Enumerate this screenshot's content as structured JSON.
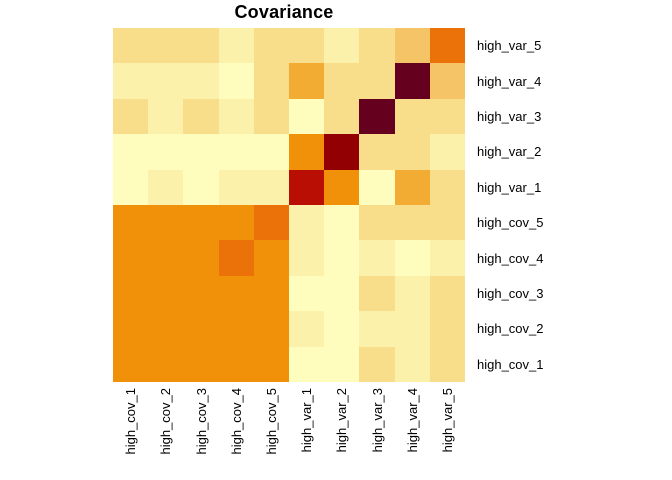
{
  "title": "Covariance",
  "chart_data": {
    "type": "heatmap",
    "title": "Covariance",
    "x_categories": [
      "high_cov_1",
      "high_cov_2",
      "high_cov_3",
      "high_cov_4",
      "high_cov_5",
      "high_var_1",
      "high_var_2",
      "high_var_3",
      "high_var_4",
      "high_var_5"
    ],
    "y_categories_top_to_bottom": [
      "high_var_5",
      "high_var_4",
      "high_var_3",
      "high_var_2",
      "high_var_1",
      "high_cov_5",
      "high_cov_4",
      "high_cov_3",
      "high_cov_2",
      "high_cov_1"
    ],
    "legend": "none",
    "grid": "off",
    "palette": {
      "vp": "#FEFDBE",
      "p": "#FBF1AB",
      "t": "#F8DD8B",
      "ot": "#F5C466",
      "lo": "#F2AC33",
      "o": "#F09109",
      "do": "#EB7208",
      "r": "#B80E04",
      "dr": "#920004",
      "m": "#66001F"
    },
    "palette_order_low_to_high": [
      "vp",
      "p",
      "t",
      "ot",
      "lo",
      "o",
      "do",
      "r",
      "dr",
      "m"
    ],
    "cells": [
      [
        "t",
        "t",
        "t",
        "p",
        "t",
        "t",
        "p",
        "t",
        "ot",
        "do"
      ],
      [
        "p",
        "p",
        "p",
        "vp",
        "t",
        "lo",
        "t",
        "t",
        "m",
        "ot"
      ],
      [
        "t",
        "p",
        "t",
        "p",
        "t",
        "vp",
        "t",
        "m",
        "t",
        "t"
      ],
      [
        "vp",
        "vp",
        "vp",
        "vp",
        "vp",
        "o",
        "dr",
        "t",
        "t",
        "p"
      ],
      [
        "vp",
        "p",
        "vp",
        "p",
        "p",
        "r",
        "o",
        "vp",
        "lo",
        "t"
      ],
      [
        "o",
        "o",
        "o",
        "o",
        "do",
        "p",
        "vp",
        "t",
        "t",
        "t"
      ],
      [
        "o",
        "o",
        "o",
        "do",
        "o",
        "p",
        "vp",
        "p",
        "vp",
        "p"
      ],
      [
        "o",
        "o",
        "o",
        "o",
        "o",
        "vp",
        "vp",
        "t",
        "p",
        "t"
      ],
      [
        "o",
        "o",
        "o",
        "o",
        "o",
        "p",
        "vp",
        "p",
        "p",
        "t"
      ],
      [
        "o",
        "o",
        "o",
        "o",
        "o",
        "vp",
        "vp",
        "t",
        "p",
        "t"
      ]
    ]
  }
}
